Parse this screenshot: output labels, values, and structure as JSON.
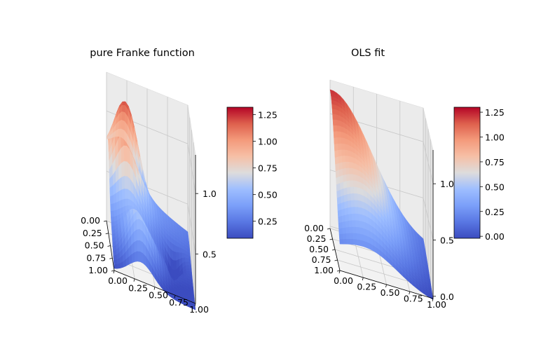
{
  "chart_data": [
    {
      "type": "surface",
      "title": "pure Franke function",
      "x_ticks": [
        "0.00",
        "0.25",
        "0.50",
        "0.75",
        "1.00"
      ],
      "y_ticks": [
        "0.00",
        "0.25",
        "0.50",
        "0.75",
        "1.00"
      ],
      "z_ticks": [
        "0.5",
        "1.0"
      ],
      "x_range": [
        0,
        1
      ],
      "y_range": [
        0,
        1
      ],
      "z_range": [
        0.09,
        1.32
      ],
      "colormap": "coolwarm",
      "colorbar": {
        "ticks": [
          "0.25",
          "0.50",
          "0.75",
          "1.00",
          "1.25"
        ],
        "range": [
          0.09,
          1.32
        ]
      },
      "grid": true
    },
    {
      "type": "surface",
      "title": "OLS fit",
      "x_ticks": [
        "0.00",
        "0.25",
        "0.50",
        "0.75",
        "1.00"
      ],
      "y_ticks": [
        "0.00",
        "0.25",
        "0.50",
        "0.75",
        "1.00"
      ],
      "z_ticks": [
        "0.0",
        "0.5",
        "1.0"
      ],
      "x_range": [
        0,
        1
      ],
      "y_range": [
        0,
        1
      ],
      "z_range": [
        -0.02,
        1.3
      ],
      "colormap": "coolwarm",
      "colorbar": {
        "ticks": [
          "0.00",
          "0.25",
          "0.50",
          "0.75",
          "1.00",
          "1.25"
        ],
        "range": [
          -0.02,
          1.3
        ]
      },
      "grid": true
    }
  ]
}
